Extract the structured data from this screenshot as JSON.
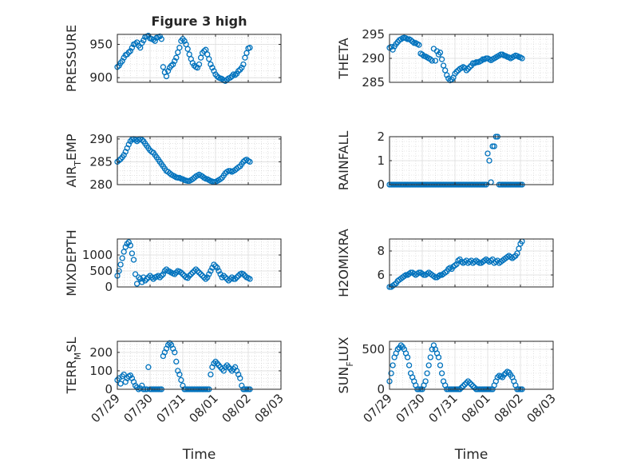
{
  "figure": {
    "title": "Figure 3 high",
    "xlabel": "Time",
    "x_ticks": [
      "07/29",
      "07/30",
      "07/31",
      "08/01",
      "08/02",
      "08/03"
    ],
    "marker_color": "#0072BD",
    "grid": true
  },
  "chart_data": [
    {
      "type": "scatter",
      "title": "Figure 3 high",
      "ylabel": "PRESSURE",
      "ylim": [
        893,
        965
      ],
      "yticks": [
        900,
        950
      ],
      "xlim": [
        0,
        5
      ],
      "x": [
        0.0,
        0.05,
        0.1,
        0.15,
        0.2,
        0.25,
        0.3,
        0.35,
        0.4,
        0.45,
        0.5,
        0.55,
        0.6,
        0.65,
        0.7,
        0.75,
        0.8,
        0.85,
        0.9,
        0.95,
        1.0,
        1.05,
        1.1,
        1.15,
        1.2,
        1.25,
        1.3,
        1.35,
        1.4,
        1.45,
        1.5,
        1.55,
        1.6,
        1.65,
        1.7,
        1.75,
        1.8,
        1.85,
        1.9,
        1.95,
        2.0,
        2.05,
        2.1,
        2.15,
        2.2,
        2.25,
        2.3,
        2.35,
        2.4,
        2.45,
        2.5,
        2.55,
        2.6,
        2.65,
        2.7,
        2.75,
        2.8,
        2.85,
        2.9,
        2.95,
        3.0,
        3.05,
        3.1,
        3.15,
        3.2,
        3.25,
        3.3,
        3.35,
        3.4,
        3.45,
        3.5,
        3.55,
        3.6,
        3.65,
        3.7,
        3.75,
        3.8,
        3.85,
        3.9,
        3.95,
        4.0,
        4.05
      ],
      "y": [
        916,
        918,
        922,
        925,
        930,
        934,
        935,
        938,
        940,
        945,
        950,
        951,
        953,
        948,
        945,
        952,
        956,
        961,
        962,
        963,
        959,
        958,
        957,
        955,
        960,
        961,
        962,
        958,
        916,
        908,
        902,
        910,
        915,
        918,
        920,
        925,
        930,
        938,
        945,
        955,
        958,
        955,
        950,
        943,
        935,
        928,
        922,
        918,
        916,
        915,
        920,
        930,
        937,
        940,
        942,
        935,
        928,
        920,
        915,
        910,
        905,
        902,
        900,
        899,
        898,
        896,
        895,
        897,
        899,
        900,
        902,
        905,
        904,
        906,
        910,
        912,
        915,
        920,
        930,
        937,
        944,
        945
      ]
    },
    {
      "type": "scatter",
      "ylabel": "THETA",
      "ylim": [
        285,
        295
      ],
      "yticks": [
        285,
        290,
        295
      ],
      "xlim": [
        0,
        5
      ],
      "x": [
        0.0,
        0.05,
        0.1,
        0.15,
        0.2,
        0.25,
        0.3,
        0.35,
        0.4,
        0.45,
        0.5,
        0.55,
        0.6,
        0.65,
        0.7,
        0.75,
        0.8,
        0.85,
        0.9,
        0.95,
        1.0,
        1.05,
        1.1,
        1.15,
        1.2,
        1.25,
        1.3,
        1.35,
        1.4,
        1.45,
        1.5,
        1.55,
        1.6,
        1.65,
        1.7,
        1.75,
        1.8,
        1.85,
        1.9,
        1.95,
        2.0,
        2.05,
        2.1,
        2.15,
        2.2,
        2.25,
        2.3,
        2.35,
        2.4,
        2.45,
        2.5,
        2.55,
        2.6,
        2.65,
        2.7,
        2.75,
        2.8,
        2.85,
        2.9,
        2.95,
        3.0,
        3.05,
        3.1,
        3.15,
        3.2,
        3.25,
        3.3,
        3.35,
        3.4,
        3.45,
        3.5,
        3.55,
        3.6,
        3.65,
        3.7,
        3.75,
        3.8,
        3.85,
        3.9,
        3.95,
        4.0,
        4.05
      ],
      "y": [
        292.2,
        292.4,
        291.8,
        292.5,
        293.0,
        293.4,
        293.8,
        294.0,
        294.2,
        294.3,
        294.2,
        294.0,
        294.0,
        293.8,
        293.5,
        293.2,
        293.2,
        293.0,
        292.8,
        291.0,
        290.8,
        290.5,
        290.4,
        290.2,
        290.0,
        289.8,
        289.5,
        292.0,
        289.5,
        291.5,
        290.8,
        291.2,
        289.8,
        288.5,
        287.5,
        286.5,
        285.8,
        285.4,
        285.6,
        286.0,
        286.8,
        287.2,
        287.5,
        287.8,
        288.0,
        288.2,
        288.0,
        287.5,
        287.8,
        288.2,
        288.5,
        289.0,
        289.0,
        289.2,
        289.2,
        289.3,
        289.5,
        289.8,
        289.8,
        290.0,
        290.0,
        289.8,
        289.6,
        289.8,
        290.0,
        290.2,
        290.4,
        290.6,
        290.8,
        290.8,
        290.6,
        290.5,
        290.3,
        290.2,
        290.0,
        290.2,
        290.4,
        290.6,
        290.5,
        290.3,
        290.2,
        290.0
      ]
    },
    {
      "type": "scatter",
      "ylabel": "AIR_TEMP",
      "ylim": [
        280,
        290.5
      ],
      "yticks": [
        280,
        285,
        290
      ],
      "xlim": [
        0,
        5
      ],
      "x": [
        0.0,
        0.05,
        0.1,
        0.15,
        0.2,
        0.25,
        0.3,
        0.35,
        0.4,
        0.45,
        0.5,
        0.55,
        0.6,
        0.65,
        0.7,
        0.75,
        0.8,
        0.85,
        0.9,
        0.95,
        1.0,
        1.05,
        1.1,
        1.15,
        1.2,
        1.25,
        1.3,
        1.35,
        1.4,
        1.45,
        1.5,
        1.55,
        1.6,
        1.65,
        1.7,
        1.75,
        1.8,
        1.85,
        1.9,
        1.95,
        2.0,
        2.05,
        2.1,
        2.15,
        2.2,
        2.25,
        2.3,
        2.35,
        2.4,
        2.45,
        2.5,
        2.55,
        2.6,
        2.65,
        2.7,
        2.75,
        2.8,
        2.85,
        2.9,
        2.95,
        3.0,
        3.05,
        3.1,
        3.15,
        3.2,
        3.25,
        3.3,
        3.35,
        3.4,
        3.45,
        3.5,
        3.55,
        3.6,
        3.65,
        3.7,
        3.75,
        3.8,
        3.85,
        3.9,
        3.95,
        4.0,
        4.05
      ],
      "y": [
        285.0,
        285.3,
        285.6,
        286.0,
        286.5,
        287.2,
        288.0,
        288.8,
        289.5,
        289.9,
        290.0,
        289.8,
        289.5,
        289.8,
        290.0,
        289.8,
        289.5,
        289.0,
        288.5,
        288.0,
        287.5,
        287.2,
        287.0,
        286.5,
        286.0,
        285.5,
        285.0,
        284.5,
        284.0,
        283.5,
        283.0,
        282.8,
        282.5,
        282.2,
        282.0,
        281.8,
        281.6,
        281.5,
        281.5,
        281.3,
        281.2,
        281.0,
        280.9,
        280.8,
        280.8,
        281.0,
        281.2,
        281.5,
        281.8,
        282.0,
        282.2,
        282.0,
        281.8,
        281.5,
        281.3,
        281.2,
        281.0,
        280.8,
        280.7,
        280.6,
        280.6,
        280.8,
        281.0,
        281.2,
        281.5,
        282.0,
        282.5,
        282.8,
        283.0,
        283.0,
        282.8,
        283.0,
        283.2,
        283.5,
        283.8,
        284.0,
        284.5,
        285.0,
        285.3,
        285.5,
        285.2,
        285.0
      ]
    },
    {
      "type": "scatter",
      "ylabel": "RAINFALL",
      "ylim": [
        0,
        2
      ],
      "yticks": [
        0,
        1,
        2
      ],
      "xlim": [
        0,
        5
      ],
      "x": [
        0.0,
        0.05,
        0.1,
        0.15,
        0.2,
        0.25,
        0.3,
        0.35,
        0.4,
        0.45,
        0.5,
        0.55,
        0.6,
        0.65,
        0.7,
        0.75,
        0.8,
        0.85,
        0.9,
        0.95,
        1.0,
        1.05,
        1.1,
        1.15,
        1.2,
        1.25,
        1.3,
        1.35,
        1.4,
        1.45,
        1.5,
        1.55,
        1.6,
        1.65,
        1.7,
        1.75,
        1.8,
        1.85,
        1.9,
        1.95,
        2.0,
        2.05,
        2.1,
        2.15,
        2.2,
        2.25,
        2.3,
        2.35,
        2.4,
        2.45,
        2.5,
        2.55,
        2.6,
        2.65,
        2.7,
        2.75,
        2.8,
        2.85,
        2.9,
        2.95,
        3.0,
        3.05,
        3.1,
        3.15,
        3.2,
        3.25,
        3.3,
        3.35,
        3.4,
        3.45,
        3.5,
        3.55,
        3.6,
        3.65,
        3.7,
        3.75,
        3.8,
        3.85,
        3.9,
        3.95,
        4.0,
        4.05
      ],
      "y": [
        0,
        0,
        0,
        0,
        0,
        0,
        0,
        0,
        0,
        0,
        0,
        0,
        0,
        0,
        0,
        0,
        0,
        0,
        0,
        0,
        0,
        0,
        0,
        0,
        0,
        0,
        0,
        0,
        0,
        0,
        0,
        0,
        0,
        0,
        0,
        0,
        0,
        0,
        0,
        0,
        0,
        0,
        0,
        0,
        0,
        0,
        0,
        0,
        0,
        0,
        0,
        0,
        0,
        0,
        0,
        0,
        0,
        0,
        0,
        0,
        1.3,
        1.0,
        0.1,
        1.6,
        1.6,
        2.0,
        2.0,
        0,
        0,
        0,
        0,
        0,
        0,
        0,
        0,
        0,
        0,
        0,
        0,
        0,
        0,
        0
      ]
    },
    {
      "type": "scatter",
      "ylabel": "MIXDEPTH",
      "ylim": [
        0,
        1500
      ],
      "yticks": [
        0,
        500,
        1000
      ],
      "xlim": [
        0,
        5
      ],
      "x": [
        0.0,
        0.05,
        0.1,
        0.15,
        0.2,
        0.25,
        0.3,
        0.35,
        0.4,
        0.45,
        0.5,
        0.55,
        0.6,
        0.65,
        0.7,
        0.75,
        0.8,
        0.85,
        0.9,
        0.95,
        1.0,
        1.05,
        1.1,
        1.15,
        1.2,
        1.25,
        1.3,
        1.35,
        1.4,
        1.45,
        1.5,
        1.55,
        1.6,
        1.65,
        1.7,
        1.75,
        1.8,
        1.85,
        1.9,
        1.95,
        2.0,
        2.05,
        2.1,
        2.15,
        2.2,
        2.25,
        2.3,
        2.35,
        2.4,
        2.45,
        2.5,
        2.55,
        2.6,
        2.65,
        2.7,
        2.75,
        2.8,
        2.85,
        2.9,
        2.95,
        3.0,
        3.05,
        3.1,
        3.15,
        3.2,
        3.25,
        3.3,
        3.35,
        3.4,
        3.45,
        3.5,
        3.55,
        3.6,
        3.65,
        3.7,
        3.75,
        3.8,
        3.85,
        3.9,
        3.95,
        4.0,
        4.05
      ],
      "y": [
        350,
        500,
        700,
        900,
        1100,
        1250,
        1350,
        1400,
        1300,
        1050,
        850,
        400,
        100,
        300,
        250,
        150,
        300,
        200,
        250,
        300,
        350,
        300,
        250,
        300,
        320,
        350,
        300,
        350,
        400,
        500,
        550,
        500,
        480,
        450,
        420,
        400,
        450,
        500,
        480,
        450,
        400,
        350,
        300,
        280,
        350,
        400,
        450,
        500,
        550,
        500,
        450,
        400,
        350,
        300,
        250,
        300,
        400,
        500,
        600,
        700,
        650,
        600,
        500,
        400,
        300,
        350,
        300,
        250,
        200,
        250,
        300,
        250,
        250,
        300,
        350,
        400,
        420,
        400,
        350,
        300,
        280,
        250
      ]
    },
    {
      "type": "scatter",
      "ylabel": "H2OMIXRA",
      "ylim": [
        5,
        9
      ],
      "yticks": [
        6,
        8
      ],
      "xlim": [
        0,
        5
      ],
      "x": [
        0.0,
        0.05,
        0.1,
        0.15,
        0.2,
        0.25,
        0.3,
        0.35,
        0.4,
        0.45,
        0.5,
        0.55,
        0.6,
        0.65,
        0.7,
        0.75,
        0.8,
        0.85,
        0.9,
        0.95,
        1.0,
        1.05,
        1.1,
        1.15,
        1.2,
        1.25,
        1.3,
        1.35,
        1.4,
        1.45,
        1.5,
        1.55,
        1.6,
        1.65,
        1.7,
        1.75,
        1.8,
        1.85,
        1.9,
        1.95,
        2.0,
        2.05,
        2.1,
        2.15,
        2.2,
        2.25,
        2.3,
        2.35,
        2.4,
        2.45,
        2.5,
        2.55,
        2.6,
        2.65,
        2.7,
        2.75,
        2.8,
        2.85,
        2.9,
        2.95,
        3.0,
        3.05,
        3.1,
        3.15,
        3.2,
        3.25,
        3.3,
        3.35,
        3.4,
        3.45,
        3.5,
        3.55,
        3.6,
        3.65,
        3.7,
        3.75,
        3.8,
        3.85,
        3.9,
        3.95,
        4.0,
        4.05
      ],
      "y": [
        5.0,
        5.0,
        5.1,
        5.2,
        5.3,
        5.5,
        5.6,
        5.7,
        5.8,
        5.9,
        6.0,
        6.0,
        6.1,
        6.2,
        6.2,
        6.1,
        6.0,
        6.1,
        6.2,
        6.2,
        6.1,
        6.0,
        6.0,
        6.1,
        6.2,
        6.1,
        6.0,
        5.9,
        5.8,
        5.8,
        5.9,
        6.0,
        6.0,
        6.1,
        6.2,
        6.3,
        6.5,
        6.6,
        6.5,
        6.7,
        6.8,
        6.9,
        7.2,
        7.3,
        7.1,
        7.0,
        7.1,
        7.2,
        7.0,
        7.1,
        7.2,
        7.0,
        7.1,
        7.2,
        7.1,
        7.0,
        7.0,
        7.1,
        7.2,
        7.3,
        7.2,
        7.1,
        7.2,
        7.3,
        7.0,
        7.1,
        7.2,
        7.0,
        7.1,
        7.2,
        7.3,
        7.4,
        7.5,
        7.6,
        7.5,
        7.4,
        7.5,
        7.6,
        7.8,
        8.2,
        8.6,
        8.8
      ]
    },
    {
      "type": "scatter",
      "ylabel": "TERR_MSL",
      "ylim": [
        0,
        260
      ],
      "yticks": [
        0,
        100,
        200
      ],
      "xlim": [
        0,
        5
      ],
      "x": [
        0.0,
        0.05,
        0.1,
        0.15,
        0.2,
        0.25,
        0.3,
        0.35,
        0.4,
        0.45,
        0.5,
        0.55,
        0.6,
        0.65,
        0.7,
        0.75,
        0.8,
        0.85,
        0.9,
        0.95,
        1.0,
        1.05,
        1.1,
        1.15,
        1.2,
        1.25,
        1.3,
        1.35,
        1.4,
        1.45,
        1.5,
        1.55,
        1.6,
        1.65,
        1.7,
        1.75,
        1.8,
        1.85,
        1.9,
        1.95,
        2.0,
        2.05,
        2.1,
        2.15,
        2.2,
        2.25,
        2.3,
        2.35,
        2.4,
        2.45,
        2.5,
        2.55,
        2.6,
        2.65,
        2.7,
        2.75,
        2.8,
        2.85,
        2.9,
        2.95,
        3.0,
        3.05,
        3.1,
        3.15,
        3.2,
        3.25,
        3.3,
        3.35,
        3.4,
        3.45,
        3.5,
        3.55,
        3.6,
        3.65,
        3.7,
        3.75,
        3.8,
        3.85,
        3.9,
        3.95,
        4.0,
        4.05
      ],
      "y": [
        50,
        60,
        30,
        70,
        80,
        40,
        60,
        70,
        75,
        60,
        40,
        20,
        10,
        0,
        5,
        20,
        0,
        0,
        0,
        120,
        0,
        0,
        0,
        0,
        0,
        0,
        0,
        0,
        180,
        200,
        220,
        240,
        250,
        240,
        220,
        200,
        150,
        100,
        80,
        50,
        20,
        0,
        0,
        0,
        0,
        0,
        0,
        0,
        0,
        0,
        0,
        0,
        0,
        0,
        0,
        0,
        0,
        80,
        120,
        140,
        150,
        140,
        130,
        120,
        110,
        100,
        120,
        130,
        120,
        110,
        100,
        110,
        120,
        100,
        80,
        60,
        20,
        0,
        0,
        0,
        0,
        0
      ]
    },
    {
      "type": "scatter",
      "ylabel": "SUN_FLUX",
      "ylim": [
        0,
        600
      ],
      "yticks": [
        0,
        500
      ],
      "xlim": [
        0,
        5
      ],
      "x": [
        0.0,
        0.05,
        0.1,
        0.15,
        0.2,
        0.25,
        0.3,
        0.35,
        0.4,
        0.45,
        0.5,
        0.55,
        0.6,
        0.65,
        0.7,
        0.75,
        0.8,
        0.85,
        0.9,
        0.95,
        1.0,
        1.05,
        1.1,
        1.15,
        1.2,
        1.25,
        1.3,
        1.35,
        1.4,
        1.45,
        1.5,
        1.55,
        1.6,
        1.65,
        1.7,
        1.75,
        1.8,
        1.85,
        1.9,
        1.95,
        2.0,
        2.05,
        2.1,
        2.15,
        2.2,
        2.25,
        2.3,
        2.35,
        2.4,
        2.45,
        2.5,
        2.55,
        2.6,
        2.65,
        2.7,
        2.75,
        2.8,
        2.85,
        2.9,
        2.95,
        3.0,
        3.05,
        3.1,
        3.15,
        3.2,
        3.25,
        3.3,
        3.35,
        3.4,
        3.45,
        3.5,
        3.55,
        3.6,
        3.65,
        3.7,
        3.75,
        3.8,
        3.85,
        3.9,
        3.95,
        4.0,
        4.05
      ],
      "y": [
        100,
        200,
        300,
        400,
        450,
        500,
        520,
        550,
        530,
        500,
        450,
        400,
        300,
        200,
        150,
        100,
        50,
        0,
        0,
        0,
        0,
        50,
        100,
        200,
        300,
        400,
        500,
        550,
        500,
        450,
        400,
        300,
        200,
        100,
        50,
        0,
        0,
        0,
        0,
        0,
        0,
        0,
        0,
        0,
        20,
        40,
        60,
        80,
        100,
        80,
        60,
        40,
        20,
        0,
        0,
        0,
        0,
        0,
        0,
        0,
        0,
        0,
        0,
        0,
        50,
        100,
        150,
        170,
        160,
        150,
        180,
        200,
        220,
        210,
        180,
        150,
        100,
        50,
        0,
        0,
        0,
        0
      ]
    }
  ]
}
